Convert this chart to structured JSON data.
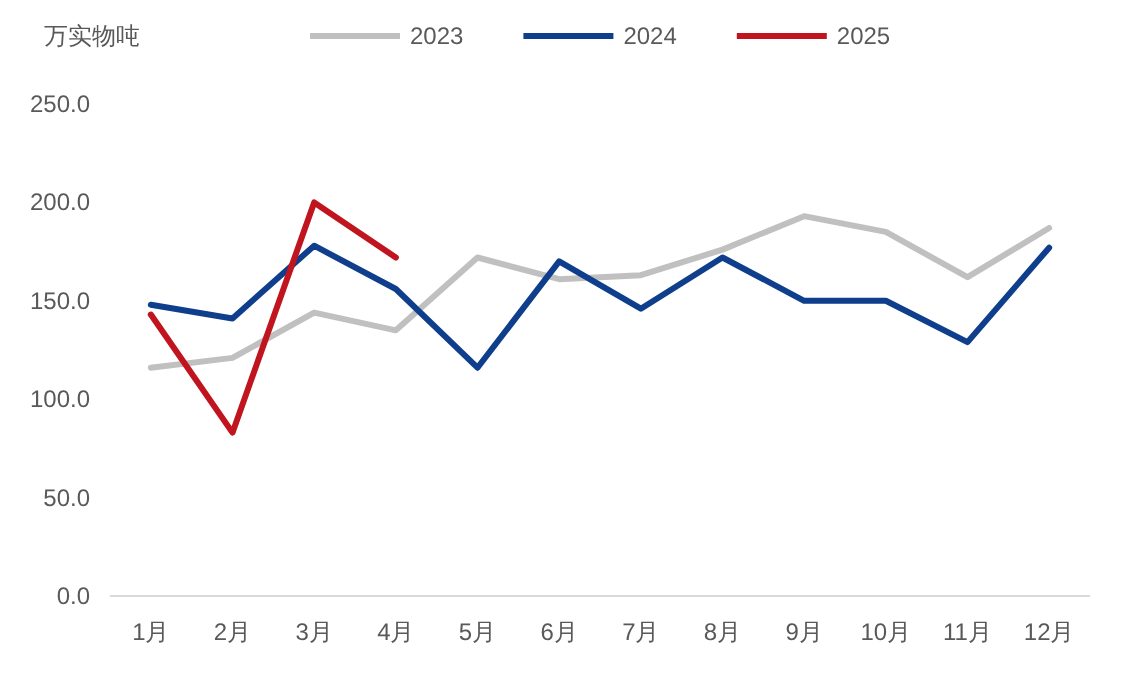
{
  "chart_data": {
    "type": "line",
    "ylabel": "万实物吨",
    "categories": [
      "1月",
      "2月",
      "3月",
      "4月",
      "5月",
      "6月",
      "7月",
      "8月",
      "9月",
      "10月",
      "11月",
      "12月"
    ],
    "series": [
      {
        "name": "2023",
        "color": "#c0c0c0",
        "values": [
          116,
          121,
          144,
          135,
          172,
          161,
          163,
          176,
          193,
          185,
          162,
          187
        ]
      },
      {
        "name": "2024",
        "color": "#0e3e8c",
        "values": [
          148,
          141,
          178,
          156,
          116,
          170,
          146,
          172,
          150,
          150,
          129,
          177
        ]
      },
      {
        "name": "2025",
        "color": "#c0141e",
        "values": [
          143,
          83,
          200,
          172,
          null,
          null,
          null,
          null,
          null,
          null,
          null,
          null
        ]
      }
    ],
    "ylim": [
      0,
      250
    ],
    "yticks": [
      {
        "value": 0,
        "label": "0.0"
      },
      {
        "value": 50,
        "label": "50.0"
      },
      {
        "value": 100,
        "label": "100.0"
      },
      {
        "value": 150,
        "label": "150.0"
      },
      {
        "value": 200,
        "label": "200.0"
      },
      {
        "value": 250,
        "label": "250.0"
      }
    ],
    "legend": "top",
    "grid": false,
    "marker": "none",
    "line_style": "solid"
  }
}
